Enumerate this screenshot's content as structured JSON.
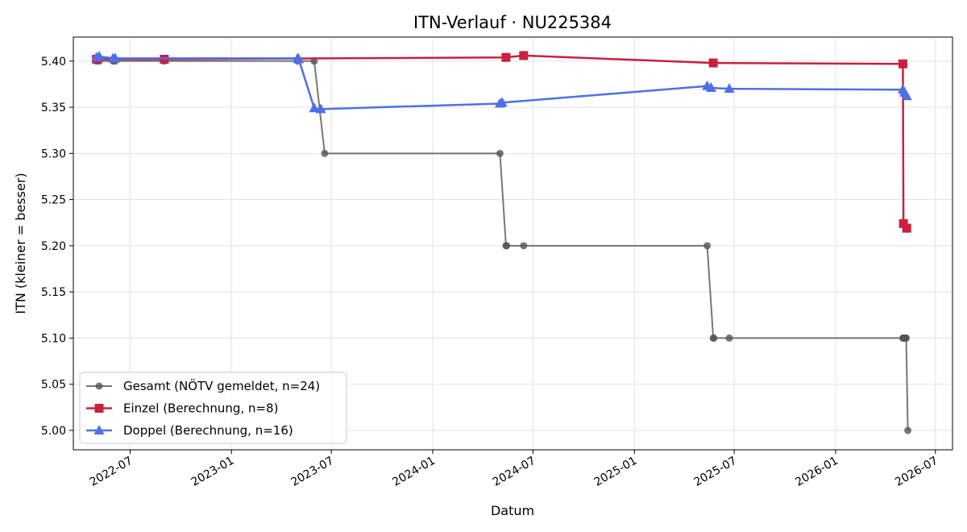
{
  "chart_data": {
    "type": "line",
    "title": "ITN-Verlauf · NU225384",
    "xlabel": "Datum",
    "ylabel": "ITN  (kleiner = besser)",
    "xlim": [
      "2022-03-20",
      "2026-08-01"
    ],
    "ylim": [
      4.979,
      5.426
    ],
    "x_ticks": [
      "2022-07",
      "2023-01",
      "2023-07",
      "2024-01",
      "2024-07",
      "2025-01",
      "2025-07",
      "2026-01",
      "2026-07"
    ],
    "y_ticks": [
      "5.00",
      "5.05",
      "5.10",
      "5.15",
      "5.20",
      "5.25",
      "5.30",
      "5.35",
      "5.40"
    ],
    "grid": true,
    "legend_position": "lower-left",
    "series": [
      {
        "name": "Gesamt (NÖTV gemeldet, n=24)",
        "color": "#555555",
        "marker": "circle",
        "points": [
          [
            "2022-05-01",
            5.4
          ],
          [
            "2022-05-06",
            5.4
          ],
          [
            "2022-05-31",
            5.4
          ],
          [
            "2022-06-04",
            5.4
          ],
          [
            "2022-09-01",
            5.4
          ],
          [
            "2023-05-01",
            5.4
          ],
          [
            "2023-05-31",
            5.4
          ],
          [
            "2023-06-19",
            5.3
          ],
          [
            "2024-05-02",
            5.3
          ],
          [
            "2024-05-13",
            5.2
          ],
          [
            "2024-05-14",
            5.2
          ],
          [
            "2024-06-14",
            5.2
          ],
          [
            "2025-05-13",
            5.2
          ],
          [
            "2025-05-24",
            5.1
          ],
          [
            "2025-05-25",
            5.1
          ],
          [
            "2025-06-22",
            5.1
          ],
          [
            "2026-05-03",
            5.1
          ],
          [
            "2026-05-04",
            5.1
          ],
          [
            "2026-05-05",
            5.1
          ],
          [
            "2026-05-06",
            5.1
          ],
          [
            "2026-05-07",
            5.1
          ],
          [
            "2026-05-08",
            5.1
          ],
          [
            "2026-05-09",
            5.1
          ],
          [
            "2026-05-12",
            5.0
          ]
        ]
      },
      {
        "name": "Einzel (Berechnung, n=8)",
        "color": "#c9203f",
        "marker": "square",
        "points": [
          [
            "2022-05-01",
            5.402
          ],
          [
            "2022-09-01",
            5.402
          ],
          [
            "2024-05-13",
            5.404
          ],
          [
            "2024-06-14",
            5.406
          ],
          [
            "2025-05-24",
            5.398
          ],
          [
            "2026-05-03",
            5.397
          ],
          [
            "2026-05-04",
            5.224
          ],
          [
            "2026-05-10",
            5.219
          ]
        ]
      },
      {
        "name": "Doppel (Berechnung, n=16)",
        "color": "#4f6fe8",
        "marker": "triangle",
        "points": [
          [
            "2022-05-01",
            5.404
          ],
          [
            "2022-05-06",
            5.405
          ],
          [
            "2022-05-31",
            5.403
          ],
          [
            "2022-06-04",
            5.403
          ],
          [
            "2023-05-01",
            5.403
          ],
          [
            "2023-05-03",
            5.402
          ],
          [
            "2023-05-31",
            5.349
          ],
          [
            "2023-06-12",
            5.348
          ],
          [
            "2024-05-02",
            5.354
          ],
          [
            "2024-05-06",
            5.355
          ],
          [
            "2025-05-13",
            5.373
          ],
          [
            "2025-05-20",
            5.371
          ],
          [
            "2025-06-22",
            5.37
          ],
          [
            "2026-05-03",
            5.369
          ],
          [
            "2026-05-06",
            5.366
          ],
          [
            "2026-05-10",
            5.362
          ]
        ]
      }
    ]
  }
}
